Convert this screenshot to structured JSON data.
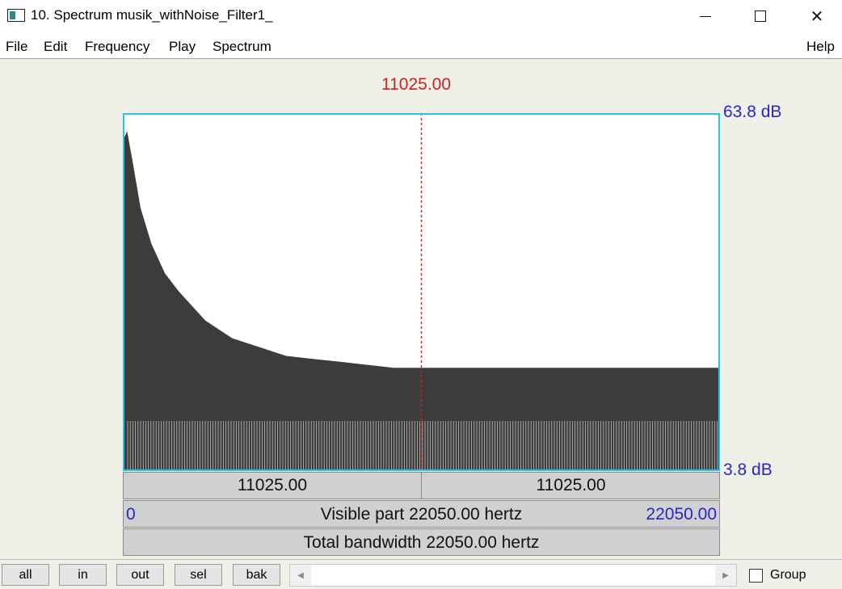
{
  "window": {
    "title": "10. Spectrum musik_withNoise_Filter1_",
    "minimize_icon": "minimize-icon",
    "maximize_icon": "maximize-icon",
    "close_icon": "close-icon",
    "close_glyph": "✕"
  },
  "menu": {
    "items": [
      "File",
      "Edit",
      "Frequency",
      "Play",
      "Spectrum"
    ],
    "help": "Help"
  },
  "spectrum": {
    "cursor_frequency": "11025.00",
    "db_max": "63.8 dB",
    "db_min": "3.8 dB",
    "left_segment": "11025.00",
    "right_segment": "11025.00",
    "visible_start": "0",
    "visible_label": "Visible part 22050.00 hertz",
    "visible_end": "22050.00",
    "total_label": "Total bandwidth 22050.00 hertz",
    "colors": {
      "plot_border": "#22c6e8",
      "cursor": "#d21f1f",
      "db_text": "#2727c8",
      "spectrum_fill": "#3c3c3c"
    }
  },
  "chart_data": {
    "type": "area",
    "xlim": [
      0,
      22050
    ],
    "ylim": [
      3.8,
      63.8
    ],
    "cursor_x": 11025,
    "series": [
      {
        "x": [
          0,
          100,
          300,
          600,
          1000,
          1500,
          2000,
          3000,
          4000,
          5000,
          6000,
          7000,
          8000,
          9000,
          10000,
          11025,
          12000,
          13000,
          14000,
          15000,
          16000,
          17000,
          18000,
          19000,
          20000,
          21000,
          22050
        ],
        "values": [
          60,
          61,
          56,
          48,
          42,
          37,
          34,
          29,
          26,
          24.5,
          23,
          22.5,
          22,
          21.5,
          21,
          21,
          21,
          21,
          21,
          21,
          21,
          21,
          21,
          21,
          21,
          21,
          21
        ]
      }
    ]
  },
  "toolbar": {
    "buttons": [
      "all",
      "in",
      "out",
      "sel",
      "bak"
    ],
    "scroll_left_icon": "scroll-left-arrow-icon",
    "scroll_right_icon": "scroll-right-arrow-icon",
    "group_label": "Group",
    "group_checked": false
  }
}
